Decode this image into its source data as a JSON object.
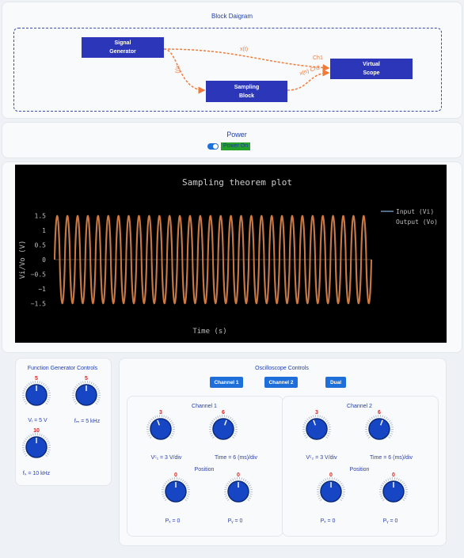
{
  "block_diagram": {
    "title": "Block Daigram",
    "signal_generator": [
      "Signal",
      "Generator"
    ],
    "sampling_block": [
      "Sampling",
      "Block"
    ],
    "virtual_scope": [
      "Virtual",
      "Scope"
    ],
    "edge_xt": "x(t)",
    "edge_xt_vertical": "x(t)",
    "edge_ch1": "Ch1",
    "edge_ch2": "x(n) Ch2"
  },
  "power": {
    "title": "Power",
    "toggle_label": "Power On",
    "on": true
  },
  "chart_data": {
    "type": "line",
    "title": "Sampling theorem plot",
    "xlabel": "Time (s)",
    "ylabel": "Vi/Vo (V)",
    "yticks": [
      "1.5",
      "1",
      "0.5",
      "0",
      "−0.5",
      "−1",
      "−1.5"
    ],
    "ylim": [
      -1.9,
      1.9
    ],
    "legend_position": "top-right",
    "series": [
      {
        "name": "Input (Vi)",
        "color": "#6b8fb3",
        "amplitude": 1.5,
        "cycles": 31
      },
      {
        "name": "Output (Vo)",
        "color": "#e0772f",
        "amplitude": 1.5,
        "cycles": 31
      }
    ],
    "background": "#000000"
  },
  "function_generator": {
    "title": "Function Generator Controls",
    "knobs": [
      {
        "value": "5",
        "label": "Vᵢ = 5 V"
      },
      {
        "value": "5",
        "label": "fₘ = 5 kHz"
      },
      {
        "value": "10",
        "label": "fₛ = 10 kHz"
      }
    ]
  },
  "oscilloscope": {
    "title": "Oscilloscope Controls",
    "buttons": [
      "Channel 1",
      "Channel 2",
      "Dual"
    ],
    "channel1": {
      "title": "Channel 1",
      "volt_value": "3",
      "volt_label": "Vᶜ₁ = 3 V/div",
      "time_value": "6",
      "time_label": "Time = 6 (ms)/div",
      "position_title": "Position",
      "px_value": "0",
      "px_label": "Pₓ = 0",
      "py_value": "0",
      "py_label": "Pᵧ = 0"
    },
    "channel2": {
      "title": "Channel 2",
      "volt_value": "3",
      "volt_label": "Vᶜ₂ = 3 V/div",
      "time_value": "6",
      "time_label": "Time = 6 (ms)/div",
      "position_title": "Position",
      "px_value": "0",
      "px_label": "Pₓ = 0",
      "py_value": "0",
      "py_label": "Pᵧ = 0"
    }
  }
}
